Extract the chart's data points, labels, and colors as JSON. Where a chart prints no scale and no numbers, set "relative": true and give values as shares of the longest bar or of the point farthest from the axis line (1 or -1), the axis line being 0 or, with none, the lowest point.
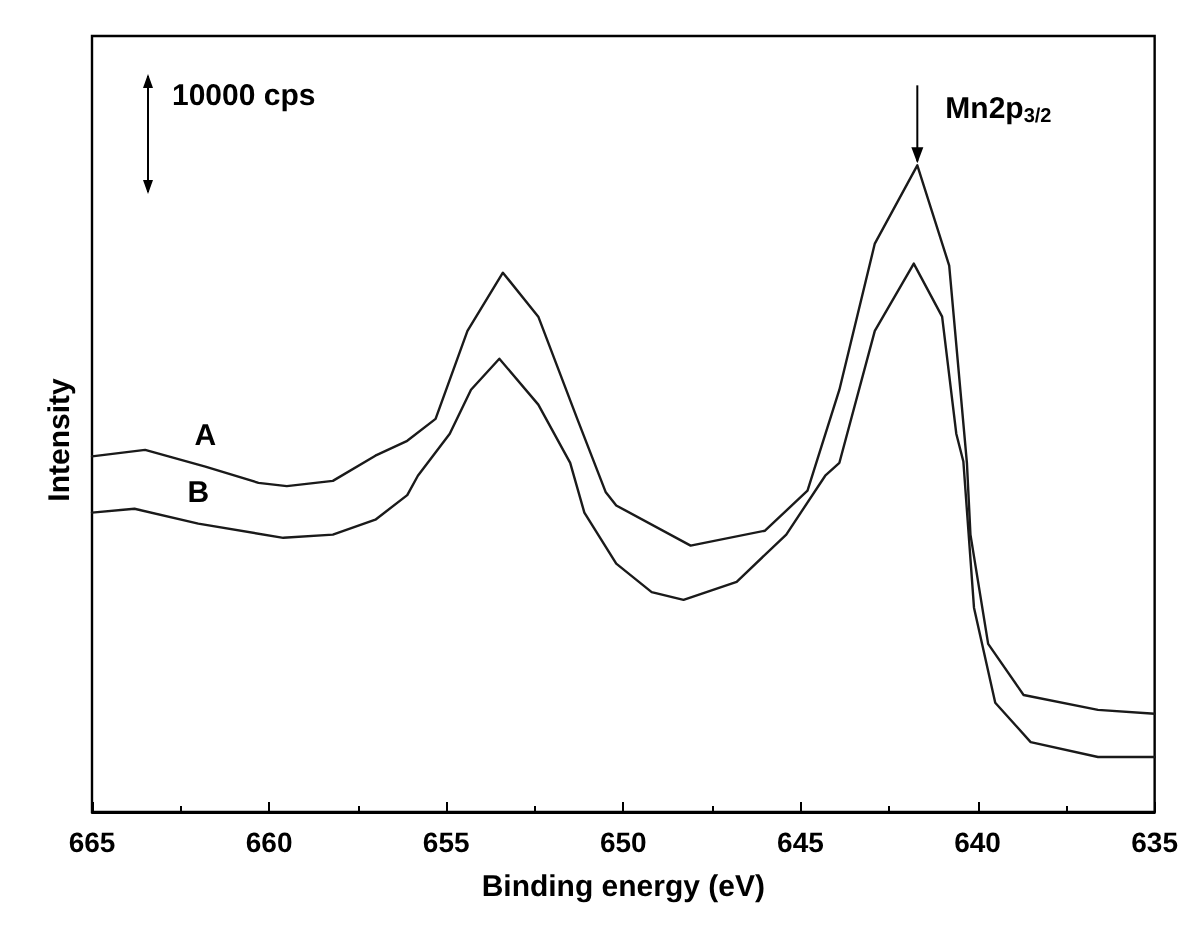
{
  "chart_data": {
    "type": "line",
    "relative": true,
    "xlabel": "Binding energy (eV)",
    "ylabel": "Intensity",
    "xlim": [
      665,
      635
    ],
    "xticks": [
      665,
      660,
      655,
      650,
      645,
      640,
      635
    ],
    "grid": false,
    "legend": false,
    "marker": "none",
    "line_style": "solid",
    "annotations": [
      "10000 cps",
      {
        "text": "Mn2p$_{3/2}$",
        "x": 641.7,
        "y": 1
      }
    ],
    "series": [
      {
        "name": "A",
        "color": "#1a1a1a",
        "x": [
          665,
          663.5,
          661.8,
          660.3,
          659.5,
          658.2,
          657,
          656.1,
          655.3,
          654.4,
          653.4,
          652.4,
          651.3,
          650.5,
          650.2,
          648.1,
          646,
          644.8,
          643.9,
          642.9,
          641.7,
          640.8,
          640.3,
          640.2,
          639.7,
          638.7,
          636.6,
          635
        ],
        "values": [
          0.55,
          0.56,
          0.534,
          0.509,
          0.504,
          0.512,
          0.551,
          0.574,
          0.608,
          0.744,
          0.834,
          0.766,
          0.608,
          0.495,
          0.474,
          0.412,
          0.435,
          0.497,
          0.653,
          0.879,
          1,
          0.845,
          0.54,
          0.429,
          0.26,
          0.181,
          0.158,
          0.152
        ]
      },
      {
        "name": "B",
        "color": "#1a1a1a",
        "x": [
          665,
          663.8,
          662,
          659.6,
          658.2,
          657,
          656.1,
          655.8,
          654.9,
          654.3,
          653.5,
          652.4,
          651.5,
          651.1,
          650.2,
          649.2,
          648.3,
          646.8,
          645.4,
          644.3,
          643.9,
          642.9,
          641.8,
          641,
          640.6,
          640.4,
          640.1,
          639.5,
          638.5,
          636.6,
          635
        ],
        "values": [
          0.463,
          0.469,
          0.446,
          0.424,
          0.429,
          0.452,
          0.49,
          0.52,
          0.585,
          0.653,
          0.701,
          0.63,
          0.54,
          0.463,
          0.384,
          0.34,
          0.328,
          0.356,
          0.429,
          0.52,
          0.54,
          0.744,
          0.848,
          0.766,
          0.585,
          0.542,
          0.316,
          0.169,
          0.108,
          0.085,
          0.085
        ]
      }
    ]
  }
}
